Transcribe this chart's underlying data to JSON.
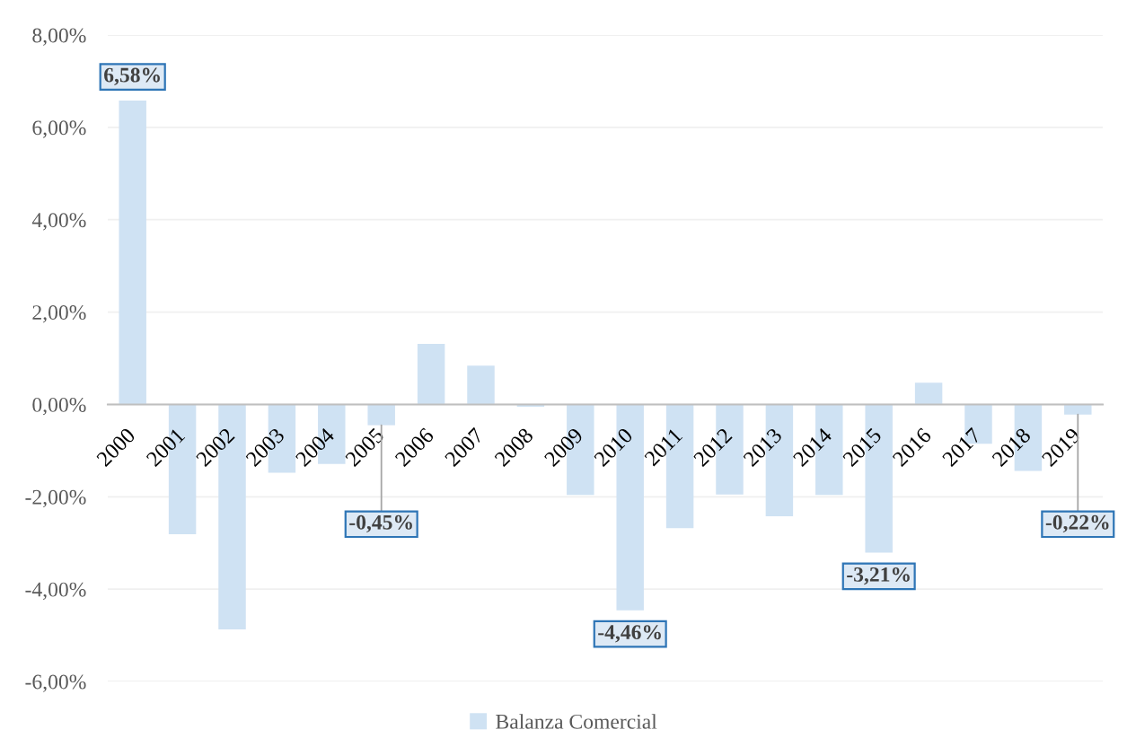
{
  "chart_data": {
    "type": "bar",
    "categories": [
      "2000",
      "2001",
      "2002",
      "2003",
      "2004",
      "2005",
      "2006",
      "2007",
      "2008",
      "2009",
      "2010",
      "2011",
      "2012",
      "2013",
      "2014",
      "2015",
      "2016",
      "2017",
      "2018",
      "2019"
    ],
    "series": [
      {
        "name": "Balanza Comercial",
        "color": "#cfe2f3",
        "values": [
          6.58,
          -2.81,
          -4.87,
          -1.48,
          -1.29,
          -0.45,
          1.31,
          0.84,
          -0.05,
          -1.96,
          -4.46,
          -2.68,
          -1.95,
          -2.42,
          -1.96,
          -3.21,
          0.47,
          -0.85,
          -1.44,
          -0.22
        ],
        "value_labels": [
          "6,58%",
          null,
          null,
          null,
          null,
          "-0,45%",
          null,
          null,
          null,
          null,
          "-4,46%",
          null,
          null,
          null,
          null,
          "-3,21%",
          null,
          null,
          null,
          "-0,22%"
        ]
      }
    ],
    "ylim": [
      -6,
      8
    ],
    "yticks": [
      {
        "value": -6,
        "label": "-6,00%"
      },
      {
        "value": -4,
        "label": "-4,00%"
      },
      {
        "value": -2,
        "label": "-2,00%"
      },
      {
        "value": 0,
        "label": "0,00%"
      },
      {
        "value": 2,
        "label": "2,00%"
      },
      {
        "value": 4,
        "label": "4,00%"
      },
      {
        "value": 6,
        "label": "6,00%"
      },
      {
        "value": 8,
        "label": "8,00%"
      }
    ],
    "grid": "y",
    "legend": "bottom"
  }
}
